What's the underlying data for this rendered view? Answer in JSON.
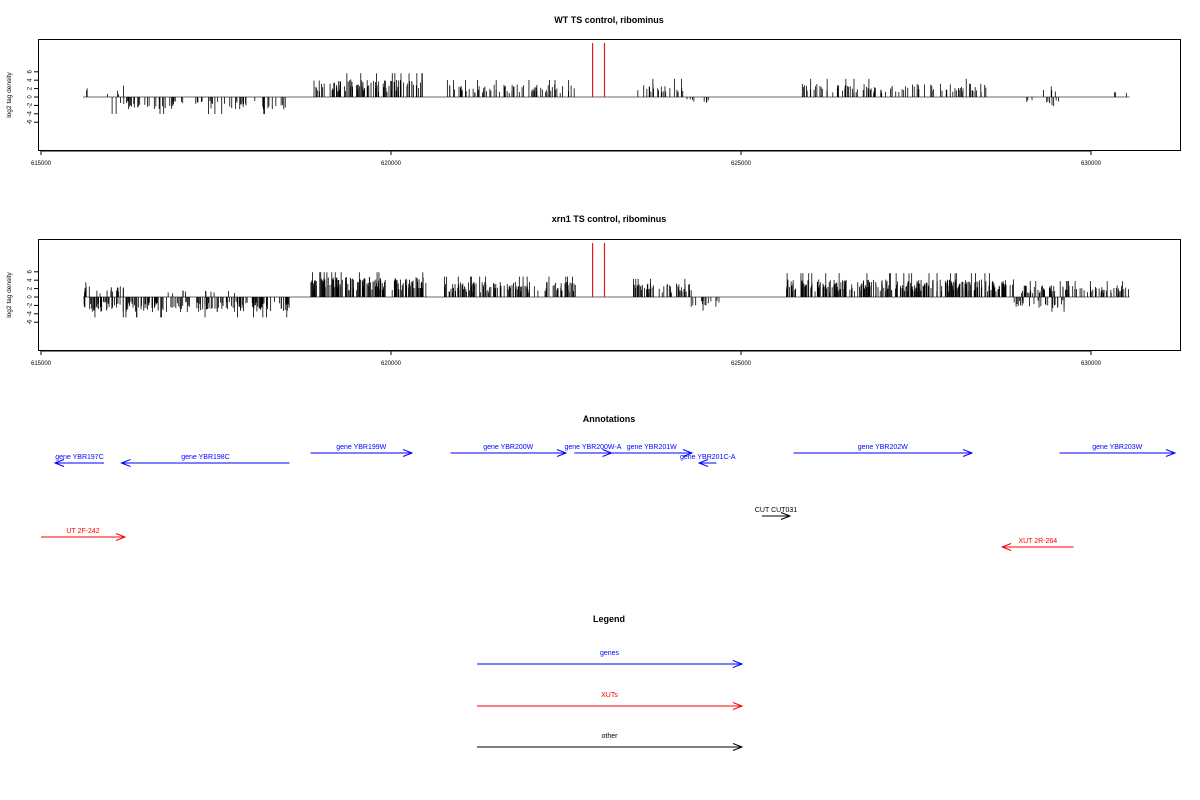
{
  "chart_data": [
    {
      "type": "bar",
      "title": "WT TS control, ribominus",
      "xlabel": "",
      "ylabel": "log2 tag density",
      "xlim": [
        615000,
        631200
      ],
      "ylim": [
        -6,
        6
      ],
      "xticks": [
        615000,
        620000,
        625000,
        630000
      ],
      "yticks": [
        6,
        4,
        2,
        0,
        -2,
        -4,
        -6
      ],
      "data_start": 615600,
      "data_end": 630550,
      "marker_positions": [
        622880,
        623050
      ],
      "marker_color": "#e41a1c",
      "regions": [
        {
          "from": 615600,
          "to": 615700,
          "density": 0.3,
          "sign": 1,
          "amp": 2.3,
          "seed": 11
        },
        {
          "from": 615850,
          "to": 616200,
          "density": 0.15,
          "sign": 1,
          "amp": 2.0,
          "seed": 12
        },
        {
          "from": 615950,
          "to": 618500,
          "density": 0.45,
          "sign": -1,
          "amp": 3.0,
          "seed": 13
        },
        {
          "from": 618900,
          "to": 620450,
          "density": 0.95,
          "sign": 1,
          "amp": 4.2,
          "seed": 14
        },
        {
          "from": 620800,
          "to": 622650,
          "density": 0.6,
          "sign": 1,
          "amp": 3.0,
          "seed": 15
        },
        {
          "from": 623450,
          "to": 624200,
          "density": 0.45,
          "sign": 1,
          "amp": 3.2,
          "seed": 16
        },
        {
          "from": 624200,
          "to": 624650,
          "density": 0.3,
          "sign": -1,
          "amp": 1.6,
          "seed": 17
        },
        {
          "from": 625850,
          "to": 628500,
          "density": 0.55,
          "sign": 1,
          "amp": 3.2,
          "seed": 18
        },
        {
          "from": 629050,
          "to": 629600,
          "density": 0.25,
          "sign": -1,
          "amp": 2.2,
          "seed": 19
        },
        {
          "from": 629250,
          "to": 629500,
          "density": 0.2,
          "sign": 1,
          "amp": 2.8,
          "seed": 20
        },
        {
          "from": 630200,
          "to": 630550,
          "density": 0.12,
          "sign": 1,
          "amp": 1.8,
          "seed": 21
        }
      ]
    },
    {
      "type": "bar",
      "title": "xrn1 TS control, ribominus",
      "xlabel": "",
      "ylabel": "log2 tag density",
      "xlim": [
        615000,
        631200
      ],
      "ylim": [
        -6,
        6
      ],
      "xticks": [
        615000,
        620000,
        625000,
        630000
      ],
      "yticks": [
        6,
        4,
        2,
        0,
        -2,
        -4,
        -6
      ],
      "data_start": 615600,
      "data_end": 630550,
      "marker_positions": [
        622880,
        623050
      ],
      "marker_color": "#e41a1c",
      "regions": [
        {
          "from": 615600,
          "to": 616200,
          "density": 0.5,
          "sign": 1,
          "amp": 2.6,
          "seed": 31
        },
        {
          "from": 615600,
          "to": 618550,
          "density": 0.9,
          "sign": -1,
          "amp": 3.6,
          "seed": 32
        },
        {
          "from": 616800,
          "to": 617800,
          "density": 0.15,
          "sign": 1,
          "amp": 1.8,
          "seed": 33
        },
        {
          "from": 618850,
          "to": 620500,
          "density": 1.5,
          "sign": 1,
          "amp": 4.8,
          "seed": 34
        },
        {
          "from": 620750,
          "to": 622650,
          "density": 1.0,
          "sign": 1,
          "amp": 3.6,
          "seed": 35
        },
        {
          "from": 623450,
          "to": 624300,
          "density": 0.9,
          "sign": 1,
          "amp": 3.2,
          "seed": 36
        },
        {
          "from": 624200,
          "to": 624700,
          "density": 0.4,
          "sign": -1,
          "amp": 2.4,
          "seed": 37
        },
        {
          "from": 625650,
          "to": 628900,
          "density": 1.3,
          "sign": 1,
          "amp": 4.2,
          "seed": 38
        },
        {
          "from": 628900,
          "to": 629700,
          "density": 0.5,
          "sign": -1,
          "amp": 2.6,
          "seed": 39
        },
        {
          "from": 629000,
          "to": 630550,
          "density": 0.8,
          "sign": 1,
          "amp": 2.8,
          "seed": 40
        }
      ]
    }
  ],
  "annotations": {
    "title": "Annotations",
    "genes": [
      {
        "label": "gene YBR197C",
        "from": 615900,
        "to": 615200,
        "row": 1
      },
      {
        "label": "gene YBR198C",
        "from": 618550,
        "to": 616150,
        "row": 1
      },
      {
        "label": "gene YBR199W",
        "from": 618850,
        "to": 620300,
        "row": 0
      },
      {
        "label": "gene YBR200W",
        "from": 620850,
        "to": 622500,
        "row": 0
      },
      {
        "label": "gene YBR200W-A",
        "from": 622620,
        "to": 623150,
        "row": 0
      },
      {
        "label": "gene YBR201W",
        "from": 623150,
        "to": 624300,
        "row": 0
      },
      {
        "label": "gene YBR201C-A",
        "from": 624650,
        "to": 624400,
        "row": 1
      },
      {
        "label": "gene YBR202W",
        "from": 625750,
        "to": 628300,
        "row": 0
      },
      {
        "label": "gene YBR203W",
        "from": 629550,
        "to": 631200,
        "row": 0
      }
    ],
    "xuts": [
      {
        "label": "UT 2F-242",
        "from": 615000,
        "to": 616200,
        "row": 0
      },
      {
        "label": "XUT 2R-264",
        "from": 629750,
        "to": 628730,
        "row": 1
      }
    ],
    "other": [
      {
        "label": "CUT CUT031",
        "from": 625300,
        "to": 625700,
        "row": 0
      }
    ]
  },
  "legend": {
    "title": "Legend",
    "items": [
      {
        "label": "genes",
        "color": "#0000ff"
      },
      {
        "label": "XUTs",
        "color": "#ff0000"
      },
      {
        "label": "other",
        "color": "#000000"
      }
    ]
  },
  "colors": {
    "genes": "#0000ff",
    "xuts": "#ff0000",
    "other": "#000000",
    "baseline": "#888888"
  }
}
